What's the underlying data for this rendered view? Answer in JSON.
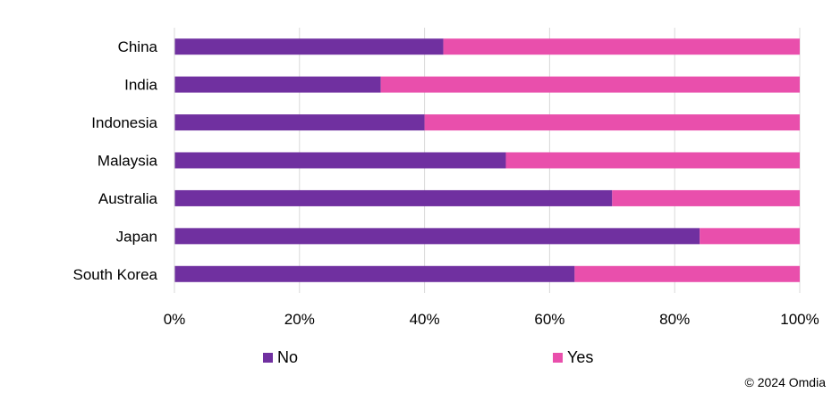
{
  "chart_data": {
    "type": "bar",
    "orientation": "horizontal",
    "stacked": true,
    "percent_stacked": true,
    "categories": [
      "China",
      "India",
      "Indonesia",
      "Malaysia",
      "Australia",
      "Japan",
      "South Korea"
    ],
    "series": [
      {
        "name": "No",
        "values": [
          43,
          33,
          40,
          53,
          70,
          84,
          64
        ],
        "color": "#7030a0"
      },
      {
        "name": "Yes",
        "values": [
          57,
          67,
          60,
          47,
          30,
          16,
          36
        ],
        "color": "#e94fac"
      }
    ],
    "xlim": [
      0,
      100
    ],
    "x_ticks": [
      "0%",
      "20%",
      "40%",
      "60%",
      "80%",
      "100%"
    ],
    "grid": true,
    "legend_position": "bottom",
    "source": "© 2024 Omdia"
  }
}
